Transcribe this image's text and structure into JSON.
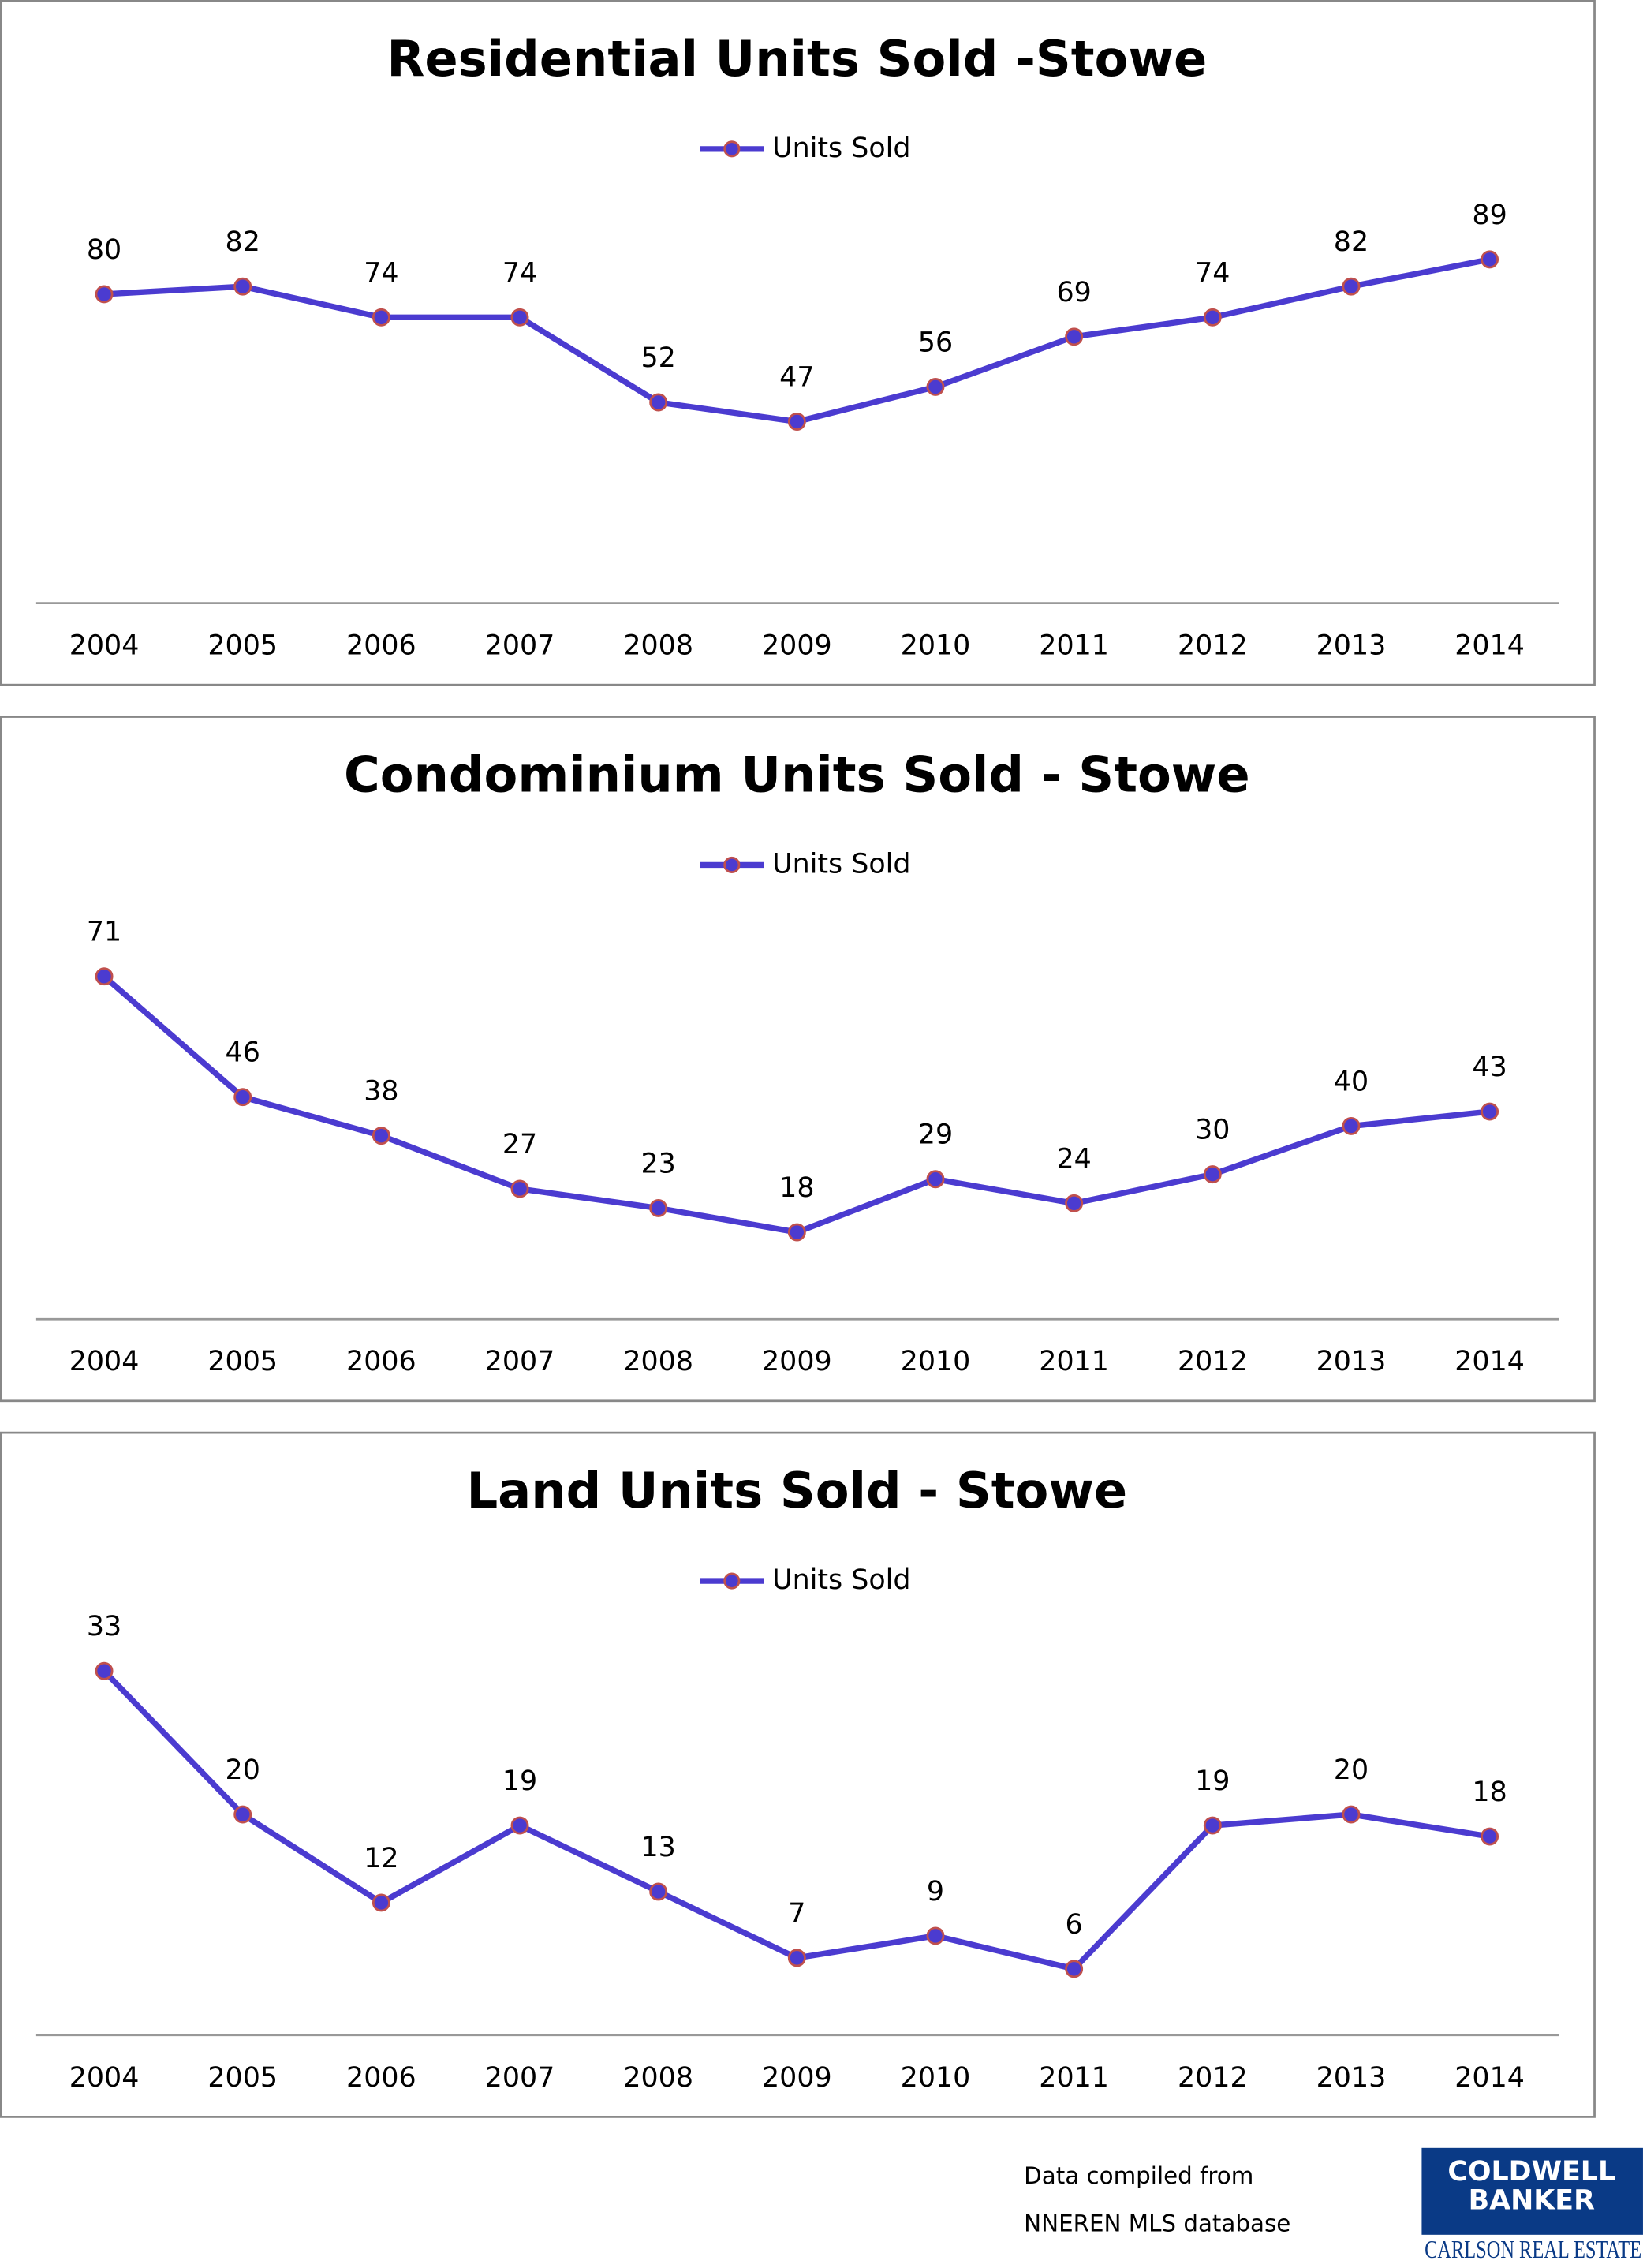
{
  "chart_data": [
    {
      "type": "line",
      "title": "Residential Units Sold -Stowe",
      "categories": [
        "2004",
        "2005",
        "2006",
        "2007",
        "2008",
        "2009",
        "2010",
        "2011",
        "2012",
        "2013",
        "2014"
      ],
      "series": [
        {
          "name": "Units Sold",
          "color": "#4b3bd0",
          "marker_edge": "#c0504d",
          "values": [
            80,
            82,
            74,
            74,
            52,
            47,
            56,
            69,
            74,
            82,
            89
          ]
        }
      ],
      "ylim": [
        0,
        100
      ],
      "legend": "top"
    },
    {
      "type": "line",
      "title": "Condominium Units Sold - Stowe",
      "categories": [
        "2004",
        "2005",
        "2006",
        "2007",
        "2008",
        "2009",
        "2010",
        "2011",
        "2012",
        "2013",
        "2014"
      ],
      "series": [
        {
          "name": "Units Sold",
          "color": "#4b3bd0",
          "marker_edge": "#c0504d",
          "values": [
            71,
            46,
            38,
            27,
            23,
            18,
            29,
            24,
            30,
            40,
            43
          ]
        }
      ],
      "ylim": [
        0,
        80
      ],
      "legend": "top"
    },
    {
      "type": "line",
      "title": "Land Units Sold - Stowe",
      "categories": [
        "2004",
        "2005",
        "2006",
        "2007",
        "2008",
        "2009",
        "2010",
        "2011",
        "2012",
        "2013",
        "2014"
      ],
      "series": [
        {
          "name": "Units Sold",
          "color": "#4b3bd0",
          "marker_edge": "#c0504d",
          "values": [
            33,
            20,
            12,
            19,
            13,
            7,
            9,
            6,
            19,
            20,
            18
          ]
        }
      ],
      "ylim": [
        0,
        35
      ],
      "legend": "top"
    }
  ],
  "footer": {
    "note_lines": [
      "Data compiled from",
      "NNEREN MLS database"
    ],
    "logo": {
      "lines": [
        "COLDWELL",
        "BANKER"
      ],
      "sub": "CARLSON REAL ESTATE"
    }
  }
}
